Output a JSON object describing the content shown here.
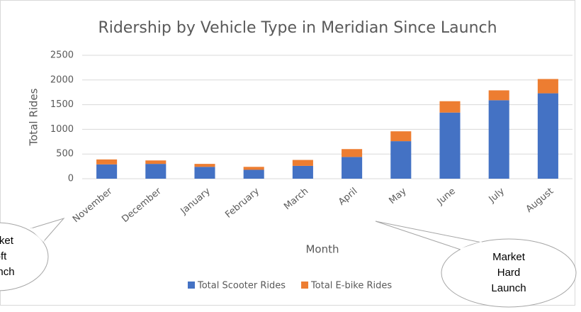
{
  "chart_data": {
    "type": "stacked_bar",
    "title": "Ridership by Vehicle Type in Meridian Since Launch",
    "x_label": "Month",
    "y_label": "Total Rides",
    "categories": [
      "November",
      "December",
      "January",
      "February",
      "March",
      "April",
      "May",
      "June",
      "July",
      "August"
    ],
    "series": [
      {
        "name": "Total Scooter Rides",
        "color": "#4472c4",
        "values": [
          290,
          300,
          240,
          180,
          260,
          440,
          760,
          1340,
          1590,
          1730
        ]
      },
      {
        "name": "Total E-bike Rides",
        "color": "#ed7d31",
        "values": [
          100,
          70,
          60,
          60,
          120,
          160,
          200,
          230,
          200,
          290
        ]
      }
    ],
    "ylim": [
      0,
      2500
    ],
    "yticks": [
      0,
      500,
      1000,
      1500,
      2000,
      2500
    ],
    "grid": true,
    "legend": "bottom",
    "annotations": [
      {
        "lines": [
          "Market",
          "Soft",
          "Launch"
        ]
      },
      {
        "lines": [
          "Market",
          "Hard",
          "Launch"
        ]
      }
    ]
  }
}
